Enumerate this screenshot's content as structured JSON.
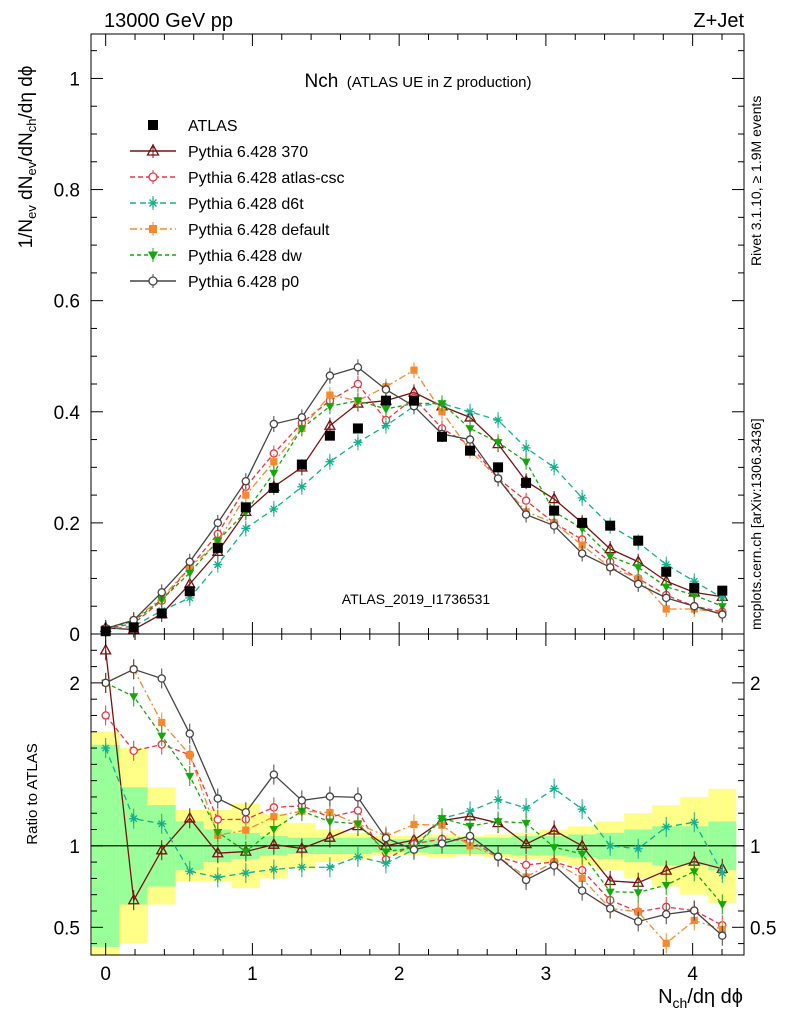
{
  "header": {
    "left": "13000 GeV pp",
    "right": "Z+Jet"
  },
  "chart_data": {
    "type": "line",
    "title_main": "Nch",
    "title_sub": "(ATLAS UE in Z production)",
    "watermark": "ATLAS_2019_I1736531",
    "side_label_top": "Rivet 3.1.10, ≥ 1.9M events",
    "side_label_bottom": "mcplots.cern.ch [arXiv:1306.3436]",
    "ylabel": "1/N_ev dN_ev/dN_ch/dη dϕ",
    "ylabel_ratio": "Ratio to ATLAS",
    "xlabel": "N_ch/dη dϕ",
    "xlim": [
      -0.1,
      4.35
    ],
    "ylim": [
      0,
      1.08
    ],
    "ylim_ratio": [
      0.33,
      2.3
    ],
    "x_ticks": [
      0,
      1,
      2,
      3,
      4
    ],
    "x_tick_labels": [
      "0",
      "1",
      "2",
      "3",
      "4"
    ],
    "y_ticks": [
      0,
      0.2,
      0.4,
      0.6,
      0.8,
      1
    ],
    "y_tick_labels": [
      "0",
      "0.2",
      "0.4",
      "0.6",
      "0.8",
      "1"
    ],
    "ratio_ticks": [
      0.5,
      1,
      2
    ],
    "ratio_tick_labels": [
      "0.5",
      "1",
      "2"
    ],
    "x": [
      0.0,
      0.191,
      0.382,
      0.573,
      0.764,
      0.955,
      1.146,
      1.337,
      1.528,
      1.719,
      1.91,
      2.101,
      2.292,
      2.483,
      2.674,
      2.865,
      3.056,
      3.247,
      3.438,
      3.629,
      3.82,
      4.011,
      4.202
    ],
    "bin_edges": [
      -0.0955,
      0.0955,
      0.2865,
      0.4775,
      0.6685,
      0.8595,
      1.0505,
      1.2415,
      1.4325,
      1.6235,
      1.8145,
      2.0055,
      2.1965,
      2.3875,
      2.5785,
      2.7695,
      2.9605,
      3.1515,
      3.3425,
      3.5335,
      3.7245,
      3.9155,
      4.1065,
      4.2975
    ],
    "band_stat": [
      0.62,
      0.36,
      0.25,
      0.15,
      0.1,
      0.08,
      0.06,
      0.05,
      0.05,
      0.05,
      0.04,
      0.04,
      0.05,
      0.05,
      0.05,
      0.06,
      0.06,
      0.07,
      0.08,
      0.1,
      0.12,
      0.12,
      0.15
    ],
    "band_total": [
      0.7,
      0.6,
      0.36,
      0.22,
      0.22,
      0.26,
      0.2,
      0.14,
      0.1,
      0.08,
      0.06,
      0.06,
      0.07,
      0.06,
      0.07,
      0.08,
      0.1,
      0.12,
      0.15,
      0.2,
      0.25,
      0.3,
      0.35
    ],
    "series": [
      {
        "name": "ATLAS",
        "color": "#000000",
        "marker": "square",
        "dash": "none",
        "values": [
          0.005,
          0.012,
          0.037,
          0.077,
          0.155,
          0.228,
          0.263,
          0.305,
          0.357,
          0.37,
          0.42,
          0.42,
          0.355,
          0.33,
          0.3,
          0.272,
          0.222,
          0.2,
          0.195,
          0.168,
          0.112,
          0.083,
          0.078
        ]
      },
      {
        "name": "Pythia 6.428 370",
        "color": "#7a1010",
        "marker": "triangle",
        "dash": "none",
        "values": [
          0.011,
          0.008,
          0.036,
          0.09,
          0.148,
          0.22,
          0.265,
          0.3,
          0.375,
          0.415,
          0.42,
          0.435,
          0.41,
          0.39,
          0.342,
          0.275,
          0.243,
          0.2,
          0.153,
          0.13,
          0.095,
          0.075,
          0.067
        ]
      },
      {
        "name": "Pythia 6.428 atlas-csc",
        "color": "#ee3344",
        "marker": "circle-open",
        "dash": "5,3",
        "values": [
          0.009,
          0.019,
          0.06,
          0.12,
          0.18,
          0.265,
          0.325,
          0.38,
          0.42,
          0.45,
          0.385,
          0.425,
          0.37,
          0.34,
          0.28,
          0.24,
          0.2,
          0.17,
          0.13,
          0.1,
          0.07,
          0.05,
          0.04
        ]
      },
      {
        "name": "Pythia 6.428 d6t",
        "color": "#13b08d",
        "marker": "asterisk",
        "dash": "6,4",
        "values": [
          0.008,
          0.014,
          0.042,
          0.065,
          0.125,
          0.19,
          0.225,
          0.265,
          0.31,
          0.345,
          0.375,
          0.41,
          0.415,
          0.4,
          0.385,
          0.335,
          0.3,
          0.245,
          0.195,
          0.165,
          0.125,
          0.095,
          0.065
        ]
      },
      {
        "name": "Pythia 6.428 default",
        "color": "#f5892f",
        "marker": "square-filled",
        "dash": "7,3,2,3",
        "values": [
          0.01,
          0.025,
          0.065,
          0.12,
          0.165,
          0.25,
          0.31,
          0.37,
          0.43,
          0.42,
          0.445,
          0.475,
          0.4,
          0.33,
          0.28,
          0.22,
          0.2,
          0.16,
          0.12,
          0.1,
          0.045,
          0.045,
          0.038
        ]
      },
      {
        "name": "Pythia 6.428 dw",
        "color": "#14a80c",
        "marker": "triangle-down",
        "dash": "4,3",
        "values": [
          0.01,
          0.023,
          0.062,
          0.11,
          0.168,
          0.22,
          0.29,
          0.37,
          0.41,
          0.42,
          0.405,
          0.415,
          0.415,
          0.37,
          0.345,
          0.31,
          0.22,
          0.19,
          0.14,
          0.12,
          0.085,
          0.07,
          0.05
        ]
      },
      {
        "name": "Pythia 6.428 p0",
        "color": "#444444",
        "marker": "circle-open",
        "dash": "none",
        "values": [
          0.01,
          0.025,
          0.075,
          0.13,
          0.2,
          0.275,
          0.378,
          0.39,
          0.465,
          0.48,
          0.44,
          0.41,
          0.36,
          0.35,
          0.28,
          0.215,
          0.195,
          0.145,
          0.12,
          0.09,
          0.065,
          0.05,
          0.035
        ]
      }
    ]
  }
}
